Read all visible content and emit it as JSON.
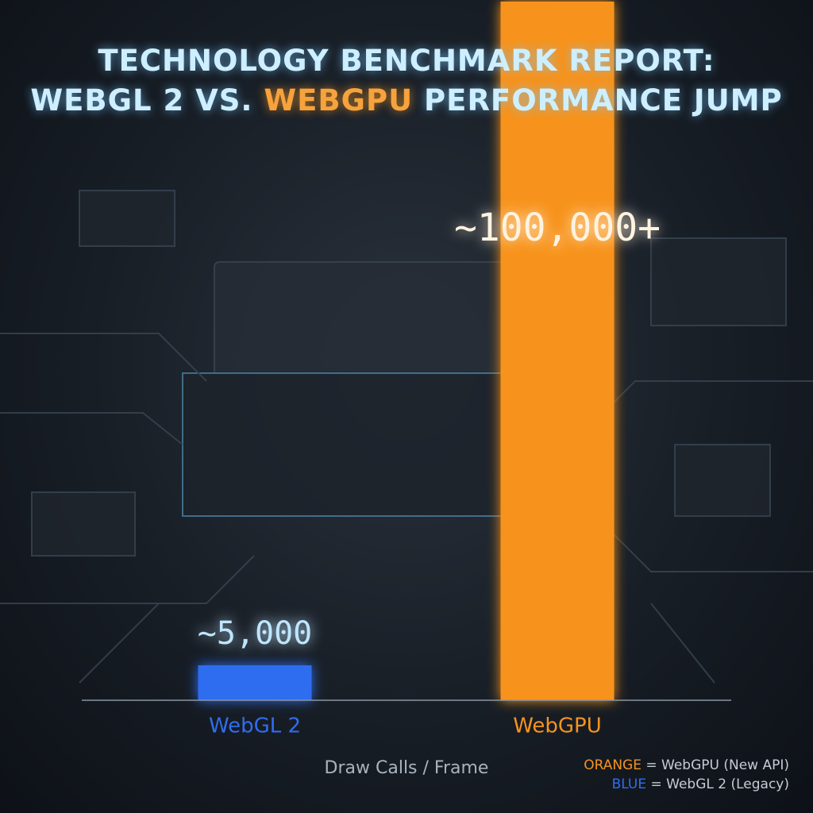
{
  "chart_data": {
    "type": "bar",
    "title": [
      "TECHNOLOGY BENCHMARK REPORT:",
      "WEBGL 2 VS.",
      "WEBGPU",
      "PERFORMANCE JUMP"
    ],
    "categories": [
      "WebGL 2",
      "WebGPU"
    ],
    "values": [
      5000,
      100000
    ],
    "value_labels": [
      "~5,000",
      "~100,000+"
    ],
    "colors": [
      "#2f6df0",
      "#f7931e"
    ],
    "x_label": "Draw Calls / Frame",
    "legend": [
      {
        "key": "ORANGE",
        "label": "= WebGPU (New API)",
        "color": "#f7931e"
      },
      {
        "key": "BLUE",
        "label": "= WebGL 2 (Legacy)",
        "color": "#2f6df0"
      }
    ]
  }
}
